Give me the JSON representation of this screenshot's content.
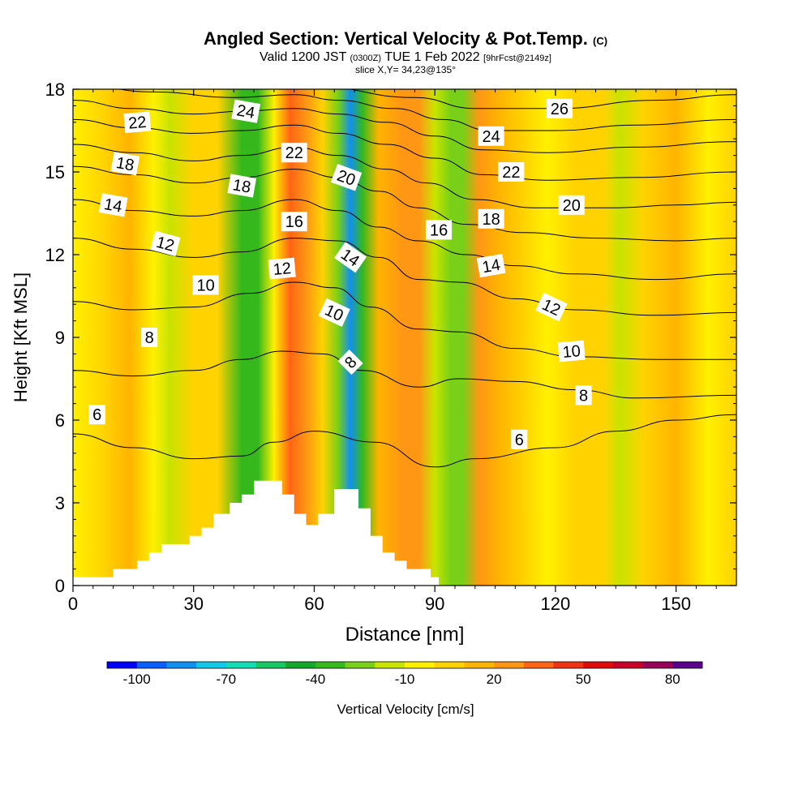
{
  "title": "Angled Section: Vertical Velocity & Pot.Temp.",
  "title_units": "(C)",
  "subtitle_parts": [
    "Valid 1200 JST",
    "(0300Z)",
    "TUE 1 Feb 2022",
    "[9hrFcst@2149z]"
  ],
  "slice_info": "slice X,Y= 34,23@135°",
  "chart_data": {
    "type": "heatmap",
    "xlabel": "Distance [nm]",
    "ylabel": "Height [Kft MSL]",
    "xlim": [
      0,
      165
    ],
    "ylim": [
      0,
      18
    ],
    "xticks": [
      "0",
      "30",
      "60",
      "90",
      "120",
      "150"
    ],
    "yticks": [
      "0",
      "3",
      "6",
      "9",
      "12",
      "15",
      "18"
    ],
    "colorbar": {
      "label": "Vertical Velocity [cm/s]",
      "tick_labels": [
        "-100",
        "-70",
        "-40",
        "-10",
        "20",
        "50",
        "80"
      ],
      "colors": [
        "#0000ff",
        "#0a5fff",
        "#0f8ff0",
        "#12c8e8",
        "#14dcb4",
        "#18c864",
        "#14a82a",
        "#34b81c",
        "#78d018",
        "#c8e400",
        "#fff000",
        "#ffd200",
        "#ffb400",
        "#ff9614",
        "#ff6414",
        "#f03214",
        "#e00a0a",
        "#c80028",
        "#96005a",
        "#5a008c"
      ]
    },
    "velocity_bands": [
      {
        "x": 0,
        "v": -10
      },
      {
        "x": 8,
        "v": 0
      },
      {
        "x": 14,
        "v": 10
      },
      {
        "x": 20,
        "v": -5
      },
      {
        "x": 24,
        "v": -20
      },
      {
        "x": 30,
        "v": 0
      },
      {
        "x": 36,
        "v": 5
      },
      {
        "x": 42,
        "v": -35
      },
      {
        "x": 46,
        "v": -40
      },
      {
        "x": 50,
        "v": -10
      },
      {
        "x": 54,
        "v": 30
      },
      {
        "x": 58,
        "v": 20
      },
      {
        "x": 62,
        "v": 5
      },
      {
        "x": 66,
        "v": -30
      },
      {
        "x": 69,
        "v": -90
      },
      {
        "x": 72,
        "v": -40
      },
      {
        "x": 76,
        "v": 10
      },
      {
        "x": 82,
        "v": 25
      },
      {
        "x": 86,
        "v": 20
      },
      {
        "x": 90,
        "v": -20
      },
      {
        "x": 94,
        "v": -30
      },
      {
        "x": 97,
        "v": -25
      },
      {
        "x": 101,
        "v": 25
      },
      {
        "x": 106,
        "v": 10
      },
      {
        "x": 112,
        "v": 5
      },
      {
        "x": 118,
        "v": -10
      },
      {
        "x": 125,
        "v": 5
      },
      {
        "x": 132,
        "v": 0
      },
      {
        "x": 136,
        "v": -15
      },
      {
        "x": 142,
        "v": 5
      },
      {
        "x": 150,
        "v": 10
      },
      {
        "x": 158,
        "v": -5
      },
      {
        "x": 165,
        "v": 5
      }
    ],
    "terrain": [
      {
        "x": 0,
        "h": 0.3
      },
      {
        "x": 10,
        "h": 0.3
      },
      {
        "x": 10,
        "h": 0.6
      },
      {
        "x": 16,
        "h": 0.6
      },
      {
        "x": 16,
        "h": 0.9
      },
      {
        "x": 19,
        "h": 0.9
      },
      {
        "x": 19,
        "h": 1.2
      },
      {
        "x": 22,
        "h": 1.2
      },
      {
        "x": 22,
        "h": 1.5
      },
      {
        "x": 29,
        "h": 1.5
      },
      {
        "x": 29,
        "h": 1.8
      },
      {
        "x": 32,
        "h": 1.8
      },
      {
        "x": 32,
        "h": 2.1
      },
      {
        "x": 35,
        "h": 2.1
      },
      {
        "x": 35,
        "h": 2.6
      },
      {
        "x": 39,
        "h": 2.6
      },
      {
        "x": 39,
        "h": 3.0
      },
      {
        "x": 42,
        "h": 3.0
      },
      {
        "x": 42,
        "h": 3.3
      },
      {
        "x": 45,
        "h": 3.3
      },
      {
        "x": 45,
        "h": 3.8
      },
      {
        "x": 52,
        "h": 3.8
      },
      {
        "x": 52,
        "h": 3.3
      },
      {
        "x": 55,
        "h": 3.3
      },
      {
        "x": 55,
        "h": 2.6
      },
      {
        "x": 58,
        "h": 2.6
      },
      {
        "x": 58,
        "h": 2.2
      },
      {
        "x": 61,
        "h": 2.2
      },
      {
        "x": 61,
        "h": 2.6
      },
      {
        "x": 65,
        "h": 2.6
      },
      {
        "x": 65,
        "h": 3.5
      },
      {
        "x": 71,
        "h": 3.5
      },
      {
        "x": 71,
        "h": 2.8
      },
      {
        "x": 74,
        "h": 2.8
      },
      {
        "x": 74,
        "h": 1.8
      },
      {
        "x": 77,
        "h": 1.8
      },
      {
        "x": 77,
        "h": 1.2
      },
      {
        "x": 80,
        "h": 1.2
      },
      {
        "x": 80,
        "h": 0.9
      },
      {
        "x": 83,
        "h": 0.9
      },
      {
        "x": 83,
        "h": 0.6
      },
      {
        "x": 89,
        "h": 0.6
      },
      {
        "x": 89,
        "h": 0.3
      },
      {
        "x": 91,
        "h": 0.3
      },
      {
        "x": 91,
        "h": 0
      }
    ],
    "isotherms": [
      {
        "level": 6,
        "points": [
          [
            0,
            5.5
          ],
          [
            15,
            5.0
          ],
          [
            30,
            4.6
          ],
          [
            42,
            4.7
          ],
          [
            50,
            5.2
          ],
          [
            60,
            5.6
          ],
          [
            75,
            5.2
          ],
          [
            90,
            4.3
          ],
          [
            100,
            4.6
          ],
          [
            120,
            5.0
          ],
          [
            135,
            5.6
          ],
          [
            150,
            6.0
          ],
          [
            165,
            6.2
          ]
        ]
      },
      {
        "level": 8,
        "points": [
          [
            0,
            7.8
          ],
          [
            15,
            7.6
          ],
          [
            30,
            7.8
          ],
          [
            42,
            8.2
          ],
          [
            52,
            8.5
          ],
          [
            62,
            8.4
          ],
          [
            72,
            7.8
          ],
          [
            86,
            7.2
          ],
          [
            96,
            7.5
          ],
          [
            110,
            7.4
          ],
          [
            125,
            7.1
          ],
          [
            140,
            6.8
          ],
          [
            165,
            6.9
          ]
        ]
      },
      {
        "level": 10,
        "points": [
          [
            0,
            10.3
          ],
          [
            15,
            10.0
          ],
          [
            30,
            10.1
          ],
          [
            44,
            10.6
          ],
          [
            55,
            11.0
          ],
          [
            65,
            10.8
          ],
          [
            74,
            10.1
          ],
          [
            86,
            9.3
          ],
          [
            96,
            9.2
          ],
          [
            110,
            8.6
          ],
          [
            125,
            8.3
          ],
          [
            145,
            8.2
          ],
          [
            165,
            8.2
          ]
        ]
      },
      {
        "level": 12,
        "points": [
          [
            0,
            12.6
          ],
          [
            15,
            12.2
          ],
          [
            30,
            11.9
          ],
          [
            42,
            12.1
          ],
          [
            55,
            12.6
          ],
          [
            66,
            12.5
          ],
          [
            76,
            11.9
          ],
          [
            86,
            11.1
          ],
          [
            96,
            11.0
          ],
          [
            110,
            10.4
          ],
          [
            125,
            10.0
          ],
          [
            145,
            9.8
          ],
          [
            165,
            9.9
          ]
        ]
      },
      {
        "level": 14,
        "points": [
          [
            0,
            14.0
          ],
          [
            15,
            13.6
          ],
          [
            30,
            13.4
          ],
          [
            42,
            13.6
          ],
          [
            55,
            14.0
          ],
          [
            66,
            13.6
          ],
          [
            76,
            13.0
          ],
          [
            86,
            12.5
          ],
          [
            98,
            12.0
          ],
          [
            110,
            11.6
          ],
          [
            125,
            11.3
          ],
          [
            145,
            11.1
          ],
          [
            165,
            11.3
          ]
        ]
      },
      {
        "level": 16,
        "points": [
          [
            0,
            15.2
          ],
          [
            15,
            14.9
          ],
          [
            30,
            14.6
          ],
          [
            42,
            14.8
          ],
          [
            55,
            15.1
          ],
          [
            66,
            14.8
          ],
          [
            76,
            14.3
          ],
          [
            86,
            13.7
          ],
          [
            98,
            13.1
          ],
          [
            112,
            12.8
          ],
          [
            130,
            12.6
          ],
          [
            150,
            12.5
          ],
          [
            165,
            12.6
          ]
        ]
      },
      {
        "level": 18,
        "points": [
          [
            0,
            16.0
          ],
          [
            15,
            15.7
          ],
          [
            30,
            15.4
          ],
          [
            42,
            15.6
          ],
          [
            55,
            15.9
          ],
          [
            66,
            15.6
          ],
          [
            78,
            15.1
          ],
          [
            88,
            14.6
          ],
          [
            100,
            14.0
          ],
          [
            115,
            13.7
          ],
          [
            135,
            13.7
          ],
          [
            150,
            13.8
          ],
          [
            165,
            13.9
          ]
        ]
      },
      {
        "level": 20,
        "points": [
          [
            0,
            16.9
          ],
          [
            15,
            16.6
          ],
          [
            30,
            16.4
          ],
          [
            42,
            16.5
          ],
          [
            55,
            16.7
          ],
          [
            66,
            16.4
          ],
          [
            78,
            16.0
          ],
          [
            90,
            15.5
          ],
          [
            102,
            14.9
          ],
          [
            118,
            14.7
          ],
          [
            140,
            14.8
          ],
          [
            165,
            15.0
          ]
        ]
      },
      {
        "level": 22,
        "points": [
          [
            0,
            17.6
          ],
          [
            15,
            17.3
          ],
          [
            30,
            17.1
          ],
          [
            42,
            17.2
          ],
          [
            55,
            17.3
          ],
          [
            66,
            17.1
          ],
          [
            78,
            16.8
          ],
          [
            90,
            16.3
          ],
          [
            102,
            15.8
          ],
          [
            118,
            15.7
          ],
          [
            140,
            15.9
          ],
          [
            165,
            16.1
          ]
        ]
      },
      {
        "level": 24,
        "points": [
          [
            0,
            18.2
          ],
          [
            20,
            17.9
          ],
          [
            40,
            17.7
          ],
          [
            55,
            17.8
          ],
          [
            66,
            17.6
          ],
          [
            80,
            17.3
          ],
          [
            92,
            16.9
          ],
          [
            104,
            16.5
          ],
          [
            120,
            16.5
          ],
          [
            140,
            16.7
          ],
          [
            165,
            16.9
          ]
        ]
      },
      {
        "level": 26,
        "points": [
          [
            30,
            18.3
          ],
          [
            60,
            18.1
          ],
          [
            85,
            17.7
          ],
          [
            100,
            17.3
          ],
          [
            120,
            17.3
          ],
          [
            145,
            17.6
          ],
          [
            165,
            17.8
          ]
        ]
      }
    ],
    "isotherm_labels": [
      {
        "text": "6",
        "x": 6,
        "y": 6.2,
        "rot": 0
      },
      {
        "text": "8",
        "x": 19,
        "y": 9.0,
        "rot": 0
      },
      {
        "text": "10",
        "x": 33,
        "y": 10.9,
        "rot": 0
      },
      {
        "text": "12",
        "x": 23,
        "y": 12.4,
        "rot": 15
      },
      {
        "text": "14",
        "x": 10,
        "y": 13.8,
        "rot": 10
      },
      {
        "text": "18",
        "x": 13,
        "y": 15.3,
        "rot": 10
      },
      {
        "text": "22",
        "x": 16,
        "y": 16.8,
        "rot": -5
      },
      {
        "text": "24",
        "x": 43,
        "y": 17.2,
        "rot": 10
      },
      {
        "text": "18",
        "x": 42,
        "y": 14.5,
        "rot": 10
      },
      {
        "text": "22",
        "x": 55,
        "y": 15.7,
        "rot": 0
      },
      {
        "text": "16",
        "x": 55,
        "y": 13.2,
        "rot": 0
      },
      {
        "text": "12",
        "x": 52,
        "y": 11.5,
        "rot": -5
      },
      {
        "text": "10",
        "x": 65,
        "y": 9.9,
        "rot": 25
      },
      {
        "text": "8",
        "x": 69,
        "y": 8.1,
        "rot": -45
      },
      {
        "text": "14",
        "x": 69,
        "y": 11.9,
        "rot": 35
      },
      {
        "text": "20",
        "x": 68,
        "y": 14.8,
        "rot": 20
      },
      {
        "text": "16",
        "x": 91,
        "y": 12.9,
        "rot": 0
      },
      {
        "text": "24",
        "x": 104,
        "y": 16.3,
        "rot": 0
      },
      {
        "text": "22",
        "x": 109,
        "y": 15.0,
        "rot": 0
      },
      {
        "text": "18",
        "x": 104,
        "y": 13.3,
        "rot": 0
      },
      {
        "text": "14",
        "x": 104,
        "y": 11.6,
        "rot": -10
      },
      {
        "text": "12",
        "x": 119,
        "y": 10.1,
        "rot": 25
      },
      {
        "text": "10",
        "x": 124,
        "y": 8.5,
        "rot": -5
      },
      {
        "text": "8",
        "x": 127,
        "y": 6.9,
        "rot": 0
      },
      {
        "text": "6",
        "x": 111,
        "y": 5.3,
        "rot": 0
      },
      {
        "text": "20",
        "x": 124,
        "y": 13.8,
        "rot": 0
      },
      {
        "text": "26",
        "x": 121,
        "y": 17.3,
        "rot": 0
      }
    ]
  }
}
